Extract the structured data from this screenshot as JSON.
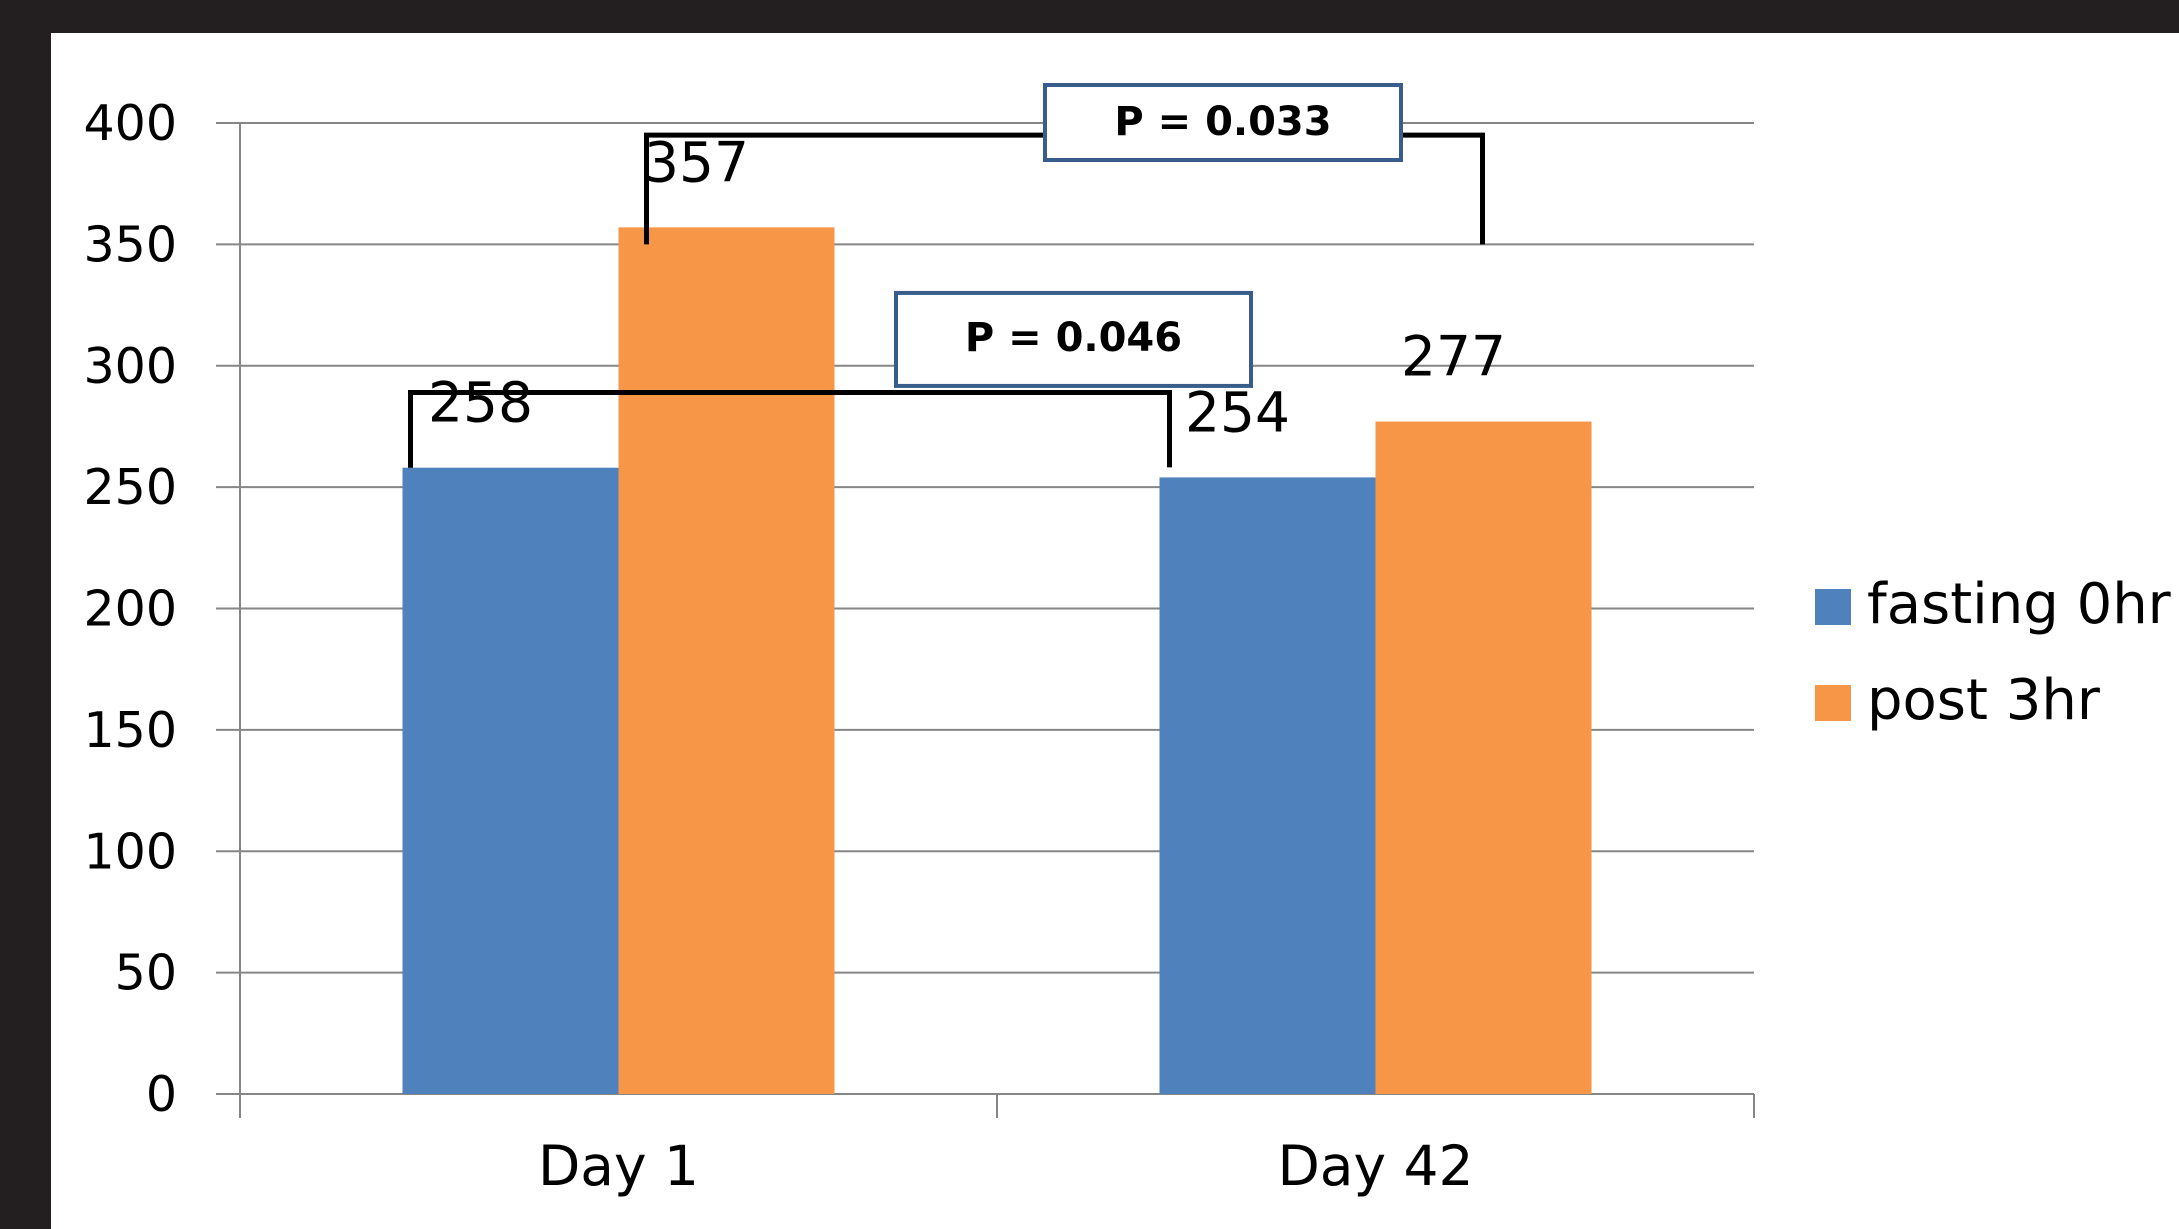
{
  "chart_data": {
    "type": "bar",
    "categories": [
      "Day 1",
      "Day 42"
    ],
    "series": [
      {
        "name": "fasting 0hr",
        "color": "#4f81bd",
        "values": [
          258,
          254
        ]
      },
      {
        "name": "post 3hr",
        "color": "#f79646",
        "values": [
          357,
          277
        ]
      }
    ],
    "ylim": [
      0,
      400
    ],
    "yticks": [
      0,
      50,
      100,
      150,
      200,
      250,
      300,
      350,
      400
    ],
    "grid": true,
    "legend_position": "right",
    "data_labels": true,
    "annotations": [
      {
        "text": "P = 0.033",
        "compares": [
          "Day 1 post 3hr",
          "Day 42 post 3hr"
        ]
      },
      {
        "text": "P = 0.046",
        "compares": [
          "Day 1 fasting 0hr",
          "Day 42 fasting 0hr"
        ]
      }
    ]
  },
  "colors": {
    "background": "#231f20",
    "plot_background": "#ffffff",
    "gridline": "#868686",
    "bracket": "#000000",
    "annotation_box_border": "#385d8a"
  }
}
